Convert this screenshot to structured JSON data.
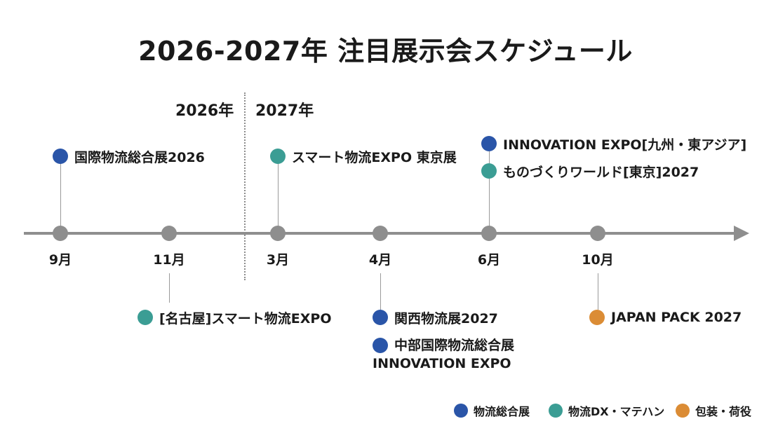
{
  "title": "2026-2027年 注目展示会スケジュール",
  "years": {
    "y2026": "2026年",
    "y2027": "2027年"
  },
  "months": [
    "9月",
    "11月",
    "3月",
    "4月",
    "6月",
    "10月"
  ],
  "events": {
    "sep_2026": "国際物流総合展2026",
    "nov_2026": "[名古屋]スマート物流EXPO",
    "mar_2027": "スマート物流EXPO 東京展",
    "apr_2027_a": "関西物流展2027",
    "apr_2027_b_line1": "中部国際物流総合展",
    "apr_2027_b_line2": "INNOVATION EXPO",
    "jun_2027_a": "INNOVATION EXPO[九州・東アジア]",
    "jun_2027_b": "ものづくりワールド[東京]2027",
    "oct_2027": "JAPAN PACK 2027"
  },
  "legend": [
    "物流総合展",
    "物流DX・マテハン",
    "包装・荷役"
  ],
  "colors": {
    "logistics": "#2a55a8",
    "dx": "#3b9d94",
    "packaging": "#db8c35",
    "axis": "#8e8e8e",
    "text": "#1a1a1a"
  }
}
